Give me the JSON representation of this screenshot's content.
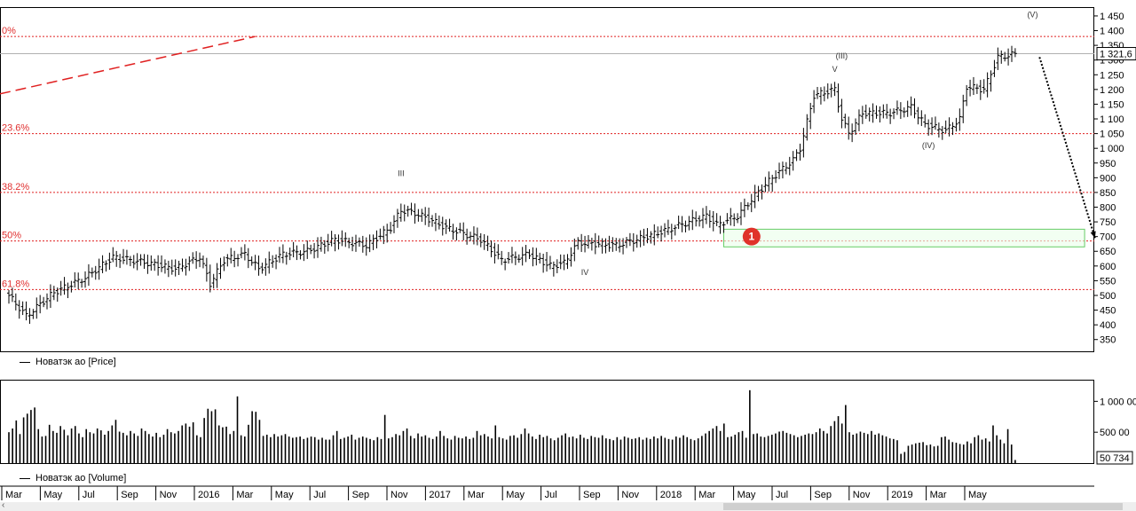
{
  "chart_data": [
    {
      "type": "ohlc",
      "title": "",
      "series_name": "Новатэк ао [Price]",
      "ylim": [
        310,
        1480
      ],
      "yticks": [
        350,
        400,
        450,
        500,
        550,
        600,
        650,
        700,
        750,
        800,
        850,
        900,
        950,
        1000,
        1050,
        1100,
        1150,
        1200,
        1250,
        1300,
        1350,
        1400,
        1450
      ],
      "ytick_labels": [
        "350",
        "400",
        "450",
        "500",
        "550",
        "600",
        "650",
        "700",
        "750",
        "800",
        "850",
        "900",
        "950",
        "1 000",
        "1 050",
        "1 100",
        "1 150",
        "1 200",
        "1 250",
        "1 300",
        "1 350",
        "1 400",
        "1 450"
      ],
      "last_value": 1321.6,
      "last_value_label": "1 321,6",
      "key_points": [
        {
          "week": 0,
          "close": 500
        },
        {
          "week": 5,
          "close": 430
        },
        {
          "week": 13,
          "close": 510
        },
        {
          "week": 22,
          "close": 560
        },
        {
          "week": 30,
          "close": 630
        },
        {
          "week": 40,
          "close": 610
        },
        {
          "week": 48,
          "close": 590
        },
        {
          "week": 55,
          "close": 630
        },
        {
          "week": 58,
          "close": 540
        },
        {
          "week": 62,
          "close": 620
        },
        {
          "week": 68,
          "close": 640
        },
        {
          "week": 72,
          "close": 590
        },
        {
          "week": 79,
          "close": 640
        },
        {
          "week": 86,
          "close": 650
        },
        {
          "week": 94,
          "close": 690
        },
        {
          "week": 103,
          "close": 670
        },
        {
          "week": 110,
          "close": 730
        },
        {
          "week": 113,
          "close": 790
        },
        {
          "week": 117,
          "close": 780
        },
        {
          "week": 121,
          "close": 760
        },
        {
          "week": 126,
          "close": 730
        },
        {
          "week": 136,
          "close": 690
        },
        {
          "week": 142,
          "close": 620
        },
        {
          "week": 150,
          "close": 640
        },
        {
          "week": 156,
          "close": 600
        },
        {
          "week": 160,
          "close": 610
        },
        {
          "week": 164,
          "close": 680
        },
        {
          "week": 175,
          "close": 670
        },
        {
          "week": 181,
          "close": 690
        },
        {
          "week": 189,
          "close": 720
        },
        {
          "week": 196,
          "close": 750
        },
        {
          "week": 201,
          "close": 770
        },
        {
          "week": 204,
          "close": 740
        },
        {
          "week": 210,
          "close": 770
        },
        {
          "week": 215,
          "close": 840
        },
        {
          "week": 220,
          "close": 900
        },
        {
          "week": 226,
          "close": 960
        },
        {
          "week": 228,
          "close": 1000
        },
        {
          "week": 232,
          "close": 1180
        },
        {
          "week": 238,
          "close": 1200
        },
        {
          "week": 240,
          "close": 1100
        },
        {
          "week": 242,
          "close": 1050
        },
        {
          "week": 246,
          "close": 1120
        },
        {
          "week": 254,
          "close": 1120
        },
        {
          "week": 260,
          "close": 1140
        },
        {
          "week": 264,
          "close": 1080
        },
        {
          "week": 270,
          "close": 1060
        },
        {
          "week": 274,
          "close": 1100
        },
        {
          "week": 276,
          "close": 1210
        },
        {
          "week": 281,
          "close": 1200
        },
        {
          "week": 285,
          "close": 1310
        },
        {
          "week": 290,
          "close": 1320
        }
      ],
      "fib_levels": [
        {
          "label": "0%",
          "value": 1380
        },
        {
          "label": "23.6%",
          "value": 1050
        },
        {
          "label": "38.2%",
          "value": 850
        },
        {
          "label": "50%",
          "value": 685
        },
        {
          "label": "61.8%",
          "value": 520
        }
      ],
      "wave_labels": [
        {
          "text": "III",
          "week": 113,
          "value": 905
        },
        {
          "text": "IV",
          "week": 166,
          "value": 570
        },
        {
          "text": "V",
          "week": 238,
          "value": 1260
        },
        {
          "text": "(III)",
          "week": 240,
          "value": 1305
        },
        {
          "text": "(IV)",
          "week": 265,
          "value": 1000
        },
        {
          "text": "(V)",
          "week": 295,
          "value": 1445
        }
      ],
      "target_zone": {
        "week_start": 206,
        "week_end": 310,
        "value_low": 665,
        "value_high": 725
      },
      "marker": {
        "label": "1",
        "week": 213,
        "value": 700
      },
      "trendline": {
        "week_start": 0,
        "value_start": 1185,
        "week_end": 71,
        "value_end": 1380
      },
      "projection_arrow": {
        "week_start": 297,
        "value_start": 1310,
        "week_end": 313,
        "value_end": 695
      }
    },
    {
      "type": "bar",
      "series_name": "Новатэк ао [Volume]",
      "ylim": [
        0,
        1350000
      ],
      "yticks": [
        500000,
        1000000
      ],
      "ytick_labels": [
        "500 00",
        "1 000 00"
      ],
      "last_value_label": "50 734",
      "x_labels": [
        "Mar",
        "May",
        "Jul",
        "Sep",
        "Nov",
        "2016",
        "Mar",
        "May",
        "Jul",
        "Sep",
        "Nov",
        "2017",
        "Mar",
        "May",
        "Jul",
        "Sep",
        "Nov",
        "2018",
        "Mar",
        "May",
        "Jul",
        "Sep",
        "Nov",
        "2019",
        "Mar",
        "May"
      ],
      "x_label_weeks": [
        0,
        9,
        17,
        26,
        35,
        44,
        52,
        61,
        70,
        78,
        87,
        96,
        105,
        113,
        122,
        131,
        140,
        148,
        157,
        166,
        174,
        183,
        192,
        200,
        209,
        218
      ],
      "values": [
        500000,
        560000,
        690000,
        470000,
        740000,
        800000,
        860000,
        900000,
        550000,
        430000,
        440000,
        620000,
        520000,
        490000,
        600000,
        540000,
        450000,
        560000,
        600000,
        480000,
        420000,
        550000,
        500000,
        480000,
        560000,
        530000,
        460000,
        520000,
        610000,
        700000,
        510000,
        490000,
        450000,
        520000,
        480000,
        440000,
        560000,
        520000,
        470000,
        430000,
        490000,
        420000,
        460000,
        550000,
        500000,
        480000,
        520000,
        610000,
        640000,
        590000,
        660000,
        450000,
        420000,
        730000,
        880000,
        840000,
        870000,
        610000,
        580000,
        590000,
        470000,
        520000,
        1080000,
        450000,
        430000,
        620000,
        840000,
        830000,
        700000,
        440000,
        460000,
        420000,
        470000,
        430000,
        450000,
        470000,
        430000,
        410000,
        420000,
        430000,
        390000,
        410000,
        430000,
        420000,
        380000,
        410000,
        380000,
        380000,
        450000,
        520000,
        390000,
        410000,
        430000,
        460000,
        380000,
        410000,
        430000,
        410000,
        390000,
        370000,
        420000,
        390000,
        780000,
        400000,
        420000,
        470000,
        450000,
        520000,
        560000,
        440000,
        400000,
        480000,
        430000,
        450000,
        410000,
        390000,
        430000,
        520000,
        440000,
        400000,
        380000,
        440000,
        410000,
        400000,
        430000,
        390000,
        410000,
        520000,
        450000,
        470000,
        430000,
        400000,
        610000,
        420000,
        400000,
        380000,
        440000,
        450000,
        410000,
        470000,
        560000,
        480000,
        430000,
        390000,
        460000,
        420000,
        440000,
        400000,
        370000,
        410000,
        450000,
        480000,
        420000,
        430000,
        400000,
        460000,
        410000,
        390000,
        440000,
        420000,
        410000,
        450000,
        400000,
        390000,
        370000,
        420000,
        380000,
        430000,
        410000,
        390000,
        400000,
        420000,
        380000,
        410000,
        390000,
        430000,
        400000,
        440000,
        410000,
        390000,
        380000,
        430000,
        410000,
        450000,
        420000,
        390000,
        370000,
        400000,
        440000,
        480000,
        520000,
        560000,
        600000,
        520000,
        640000,
        420000,
        430000,
        460000,
        500000,
        520000,
        410000,
        1180000,
        470000,
        480000,
        430000,
        420000,
        440000,
        460000,
        480000,
        510000,
        520000,
        490000,
        470000,
        450000,
        420000,
        440000,
        460000,
        480000,
        470000,
        500000,
        560000,
        520000,
        480000,
        600000,
        680000,
        760000,
        640000,
        940000,
        500000,
        460000,
        480000,
        510000,
        490000,
        470000,
        520000,
        460000,
        480000,
        450000,
        430000,
        400000,
        390000,
        370000,
        150000,
        180000,
        280000,
        300000,
        320000,
        330000,
        340000,
        290000,
        300000,
        270000,
        280000,
        420000,
        430000,
        380000,
        340000,
        330000,
        310000,
        300000,
        350000,
        320000,
        420000,
        450000,
        380000,
        400000,
        350000,
        610000,
        450000,
        380000,
        320000,
        550000,
        300000,
        50734
      ]
    }
  ],
  "price_legend_label": "Новатэк ао [Price]",
  "volume_legend_label": "Новатэк ао [Volume]",
  "colors": {
    "fib_line": "#e02020",
    "fib_label": "#e03030",
    "trendline": "#e02020",
    "zone_border": "#66cc66",
    "zone_fill": "#eaffea",
    "marker": "#e0322a",
    "bars": "#000000"
  }
}
